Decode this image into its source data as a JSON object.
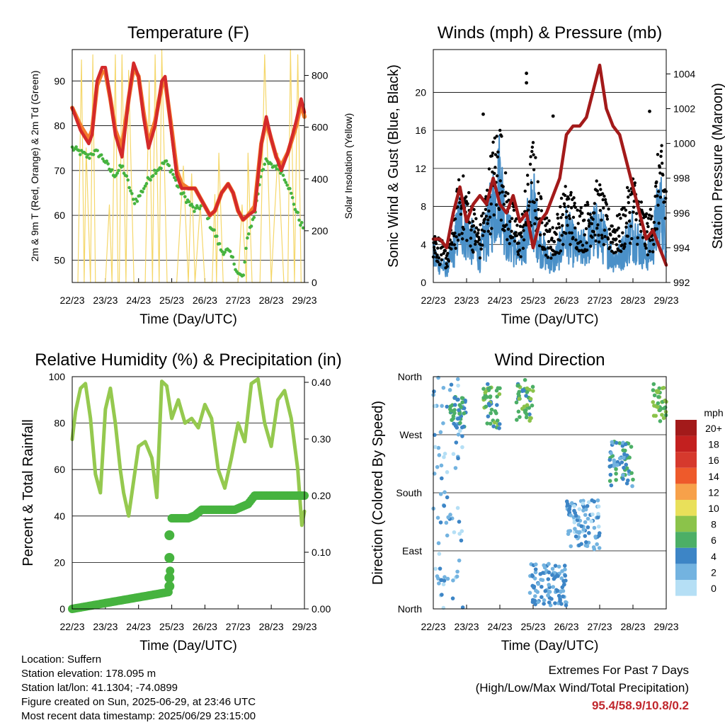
{
  "colors": {
    "temp2m": "#d42a2a",
    "temp9m": "#f47c2c",
    "dewpoint": "#46b33f",
    "solar": "#f5d76a",
    "wind": "#4a90c8",
    "gust": "#000000",
    "pressure": "#a31a1a",
    "rh": "#95c94f",
    "precip": "#46b33f",
    "extremes": "#c0272d"
  },
  "chart_data": [
    {
      "id": "temperature",
      "type": "line",
      "title": "Temperature (F)",
      "xlabel": "Time (Day/UTC)",
      "ylabel_left": "2m & 9m T (Red, Orange) & 2m Td (Green)",
      "ylabel_right": "Solar Insolation (Yellow)",
      "x_ticks": [
        "22/23",
        "23/23",
        "24/23",
        "25/23",
        "26/23",
        "27/23",
        "28/23",
        "29/23"
      ],
      "ylim_left": [
        45,
        97
      ],
      "yticks_left": [
        50,
        60,
        70,
        80,
        90
      ],
      "ylim_right": [
        0,
        900
      ],
      "yticks_right": [
        0,
        200,
        400,
        600,
        800
      ],
      "grid": true,
      "x_days": [
        0,
        0.25,
        0.5,
        0.6,
        0.75,
        0.9,
        1,
        1.15,
        1.3,
        1.5,
        1.7,
        1.85,
        2,
        2.15,
        2.3,
        2.5,
        2.7,
        2.8,
        3,
        3.15,
        3.3,
        3.5,
        3.7,
        3.85,
        4,
        4.15,
        4.3,
        4.5,
        4.7,
        4.85,
        5,
        5.15,
        5.3,
        5.5,
        5.7,
        5.85,
        6,
        6.15,
        6.3,
        6.5,
        6.75,
        6.9,
        7
      ],
      "series": [
        {
          "name": "2m T",
          "values": [
            84,
            79,
            76,
            78,
            90,
            93,
            93,
            86,
            78,
            73,
            86,
            94,
            91,
            82,
            75,
            80,
            90,
            91,
            78,
            69,
            66,
            66,
            66,
            64,
            62,
            60,
            61,
            65,
            67,
            65,
            61,
            59,
            60,
            61,
            76,
            82,
            77,
            73,
            70,
            74,
            81,
            86,
            83
          ]
        },
        {
          "name": "9m T",
          "values": [
            84,
            80,
            77,
            79,
            89,
            92,
            92,
            86,
            79,
            75,
            86,
            93,
            91,
            83,
            76,
            81,
            89,
            90,
            79,
            70,
            67,
            66,
            66,
            64,
            62,
            60,
            61,
            65,
            67,
            65,
            61,
            59,
            60,
            62,
            76,
            81,
            77,
            73,
            71,
            74,
            80,
            85,
            82
          ]
        },
        {
          "name": "2m Td",
          "values": [
            75,
            74,
            73,
            74,
            74,
            73,
            72,
            70,
            69,
            71,
            67,
            63,
            64,
            66,
            68,
            70,
            71,
            72,
            70,
            67,
            65,
            63,
            61,
            62,
            62,
            58,
            56,
            52,
            52,
            50,
            47,
            46,
            56,
            60,
            70,
            72,
            71,
            71,
            70,
            67,
            61,
            58,
            57
          ]
        }
      ],
      "solar_days": [
        0.17,
        0.28,
        0.36,
        0.42,
        0.55,
        0.62,
        0.7,
        0.86,
        1.0,
        1.12,
        1.2,
        1.3,
        1.38,
        1.42,
        1.5,
        1.62,
        1.7,
        1.86,
        2.0,
        2.2,
        2.32,
        2.42,
        2.5,
        2.62,
        2.7,
        2.86,
        3.0,
        3.15,
        3.35,
        3.5,
        3.6,
        3.7,
        3.86,
        4.0,
        4.22,
        4.3,
        4.35,
        4.42,
        4.55,
        4.7,
        4.86,
        5.0,
        5.12,
        5.25,
        5.3,
        5.42,
        5.52,
        5.66,
        5.8,
        6.0,
        6.1,
        6.2,
        6.38,
        6.5,
        6.58,
        6.7,
        6.8,
        6.9,
        7.0
      ],
      "solar_values": [
        0,
        860,
        0,
        520,
        0,
        880,
        0,
        0,
        0,
        300,
        0,
        880,
        0,
        0,
        880,
        0,
        820,
        0,
        0,
        0,
        780,
        0,
        880,
        0,
        900,
        0,
        0,
        0,
        450,
        0,
        420,
        0,
        300,
        0,
        0,
        340,
        0,
        500,
        0,
        0,
        0,
        0,
        300,
        0,
        500,
        0,
        0,
        0,
        880,
        0,
        260,
        500,
        0,
        0,
        900,
        0,
        880,
        0,
        0
      ]
    },
    {
      "id": "winds",
      "type": "line",
      "title": "Winds (mph) & Pressure (mb)",
      "xlabel": "Time (Day/UTC)",
      "ylabel_left": "Sonic Wind & Gust (Blue, Black)",
      "ylabel_right": "Station Pressure (Maroon)",
      "x_ticks": [
        "22/23",
        "23/23",
        "24/23",
        "25/23",
        "26/23",
        "27/23",
        "28/23",
        "29/23"
      ],
      "ylim_left": [
        0,
        24.5
      ],
      "yticks_left": [
        0,
        4,
        8,
        12,
        16,
        20
      ],
      "ylim_right": [
        992,
        1005.4
      ],
      "yticks_right": [
        992,
        994,
        996,
        998,
        1000,
        1002,
        1004
      ],
      "grid": true,
      "wind_days": [
        0,
        0.2,
        0.4,
        0.6,
        0.8,
        1,
        1.2,
        1.4,
        1.6,
        1.8,
        2,
        2.2,
        2.4,
        2.6,
        2.8,
        3,
        3.2,
        3.4,
        3.6,
        3.8,
        4,
        4.2,
        4.4,
        4.6,
        4.8,
        5,
        5.2,
        5.4,
        5.6,
        5.8,
        6,
        6.2,
        6.4,
        6.6,
        6.8,
        7
      ],
      "series": [
        {
          "name": "Sonic Wind",
          "values": [
            2,
            1.5,
            1,
            2.5,
            5,
            4,
            3,
            2,
            4,
            6,
            8,
            4,
            3,
            2,
            4,
            6,
            3,
            2,
            1.5,
            2.5,
            4,
            3,
            2.5,
            3,
            4,
            4,
            3,
            2,
            2,
            3,
            4,
            3,
            2,
            3,
            6,
            4
          ]
        },
        {
          "name": "Gust",
          "values": [
            5,
            4,
            3,
            6,
            10,
            9,
            7,
            5,
            9,
            13,
            15,
            9,
            7,
            5,
            9,
            13,
            8,
            6,
            5,
            7,
            9,
            8,
            7,
            7,
            9,
            9,
            7,
            6,
            6,
            8,
            10,
            8,
            6,
            7,
            13,
            10
          ]
        },
        {
          "name": "Station Pressure",
          "values": [
            994.5,
            994.5,
            994,
            996,
            997.5,
            995.5,
            996.5,
            997,
            996.5,
            998,
            996.5,
            996,
            997,
            995.5,
            996,
            994,
            995.5,
            996,
            997,
            998,
            1000.5,
            1001,
            1001,
            1001.5,
            1003,
            1004.5,
            1002,
            1001,
            1000.5,
            999,
            997.5,
            996,
            994.5,
            995,
            994,
            993
          ]
        }
      ],
      "gust_outliers": [
        [
          2.8,
          22
        ],
        [
          2.8,
          21
        ],
        [
          1.5,
          17.7
        ],
        [
          3.6,
          17.5
        ],
        [
          6.5,
          18
        ]
      ]
    },
    {
      "id": "humidity",
      "type": "line",
      "title": "Relative Humidity (%) & Precipitation (in)",
      "xlabel": "Time (Day/UTC)",
      "ylabel_left": "Percent & Total Rainfall",
      "ylim_left": [
        0,
        100
      ],
      "yticks_left": [
        0,
        20,
        40,
        60,
        80,
        100
      ],
      "ylim_right": [
        0,
        0.41
      ],
      "yticks_right": [
        "0.00",
        "0.10",
        "0.20",
        "0.30",
        "0.40"
      ],
      "x_ticks": [
        "22/23",
        "23/23",
        "24/23",
        "25/23",
        "26/23",
        "27/23",
        "28/23",
        "29/23"
      ],
      "grid": true,
      "rh_days": [
        0,
        0.1,
        0.25,
        0.4,
        0.55,
        0.7,
        0.85,
        1.0,
        1.15,
        1.3,
        1.45,
        1.55,
        1.7,
        1.85,
        2.0,
        2.2,
        2.4,
        2.55,
        2.7,
        2.85,
        3.0,
        3.2,
        3.4,
        3.6,
        3.8,
        4.0,
        4.2,
        4.4,
        4.6,
        4.8,
        5.0,
        5.2,
        5.4,
        5.6,
        5.8,
        6.0,
        6.2,
        6.4,
        6.6,
        6.8,
        6.92,
        7.0
      ],
      "rh_values": [
        73,
        85,
        95,
        97,
        82,
        58,
        50,
        86,
        95,
        80,
        60,
        50,
        40,
        55,
        70,
        72,
        65,
        48,
        98,
        96,
        82,
        90,
        80,
        82,
        78,
        88,
        82,
        60,
        52,
        65,
        80,
        72,
        97,
        99,
        80,
        70,
        90,
        94,
        82,
        60,
        36,
        42
      ],
      "precip_days": [
        0,
        2.93,
        3.0,
        3.1,
        3.3,
        3.5,
        3.7,
        3.9,
        4.1,
        4.3,
        4.5,
        4.7,
        4.9,
        5.1,
        5.3,
        5.5,
        5.7,
        5.9,
        6.1,
        6.3,
        6.5,
        6.7,
        6.9,
        7.0
      ],
      "precip_values": [
        0,
        0.03,
        0.16,
        0.16,
        0.16,
        0.16,
        0.165,
        0.175,
        0.175,
        0.175,
        0.175,
        0.175,
        0.175,
        0.18,
        0.185,
        0.2,
        0.2,
        0.2,
        0.2,
        0.2,
        0.2,
        0.2,
        0.2,
        0.2
      ]
    },
    {
      "id": "direction",
      "type": "scatter",
      "title": "Wind Direction",
      "xlabel": "Time (Day/UTC)",
      "ylabel_left": "Direction (Colored By Speed)",
      "ytick_labels": [
        "North",
        "East",
        "South",
        "West",
        "North"
      ],
      "x_ticks": [
        "22/23",
        "23/23",
        "24/23",
        "25/23",
        "26/23",
        "27/23",
        "28/23",
        "29/23"
      ],
      "grid": true,
      "legend": {
        "title": "mph",
        "labels": [
          "20+",
          "18",
          "16",
          "14",
          "12",
          "10",
          "8",
          "6",
          "4",
          "2",
          "0"
        ],
        "colors": [
          "#a31a1a",
          "#c3201f",
          "#d6392d",
          "#ee5a2b",
          "#f7a14a",
          "#e9e05a",
          "#8bc34a",
          "#4caf66",
          "#3d85c6",
          "#73b3e0",
          "#b5dff5"
        ]
      },
      "clusters": [
        {
          "day_from": 0,
          "day_to": 0.9,
          "dir_from": 0,
          "dir_to": 360,
          "speed": 2
        },
        {
          "day_from": 0.5,
          "day_to": 1.0,
          "dir_from": 280,
          "dir_to": 330,
          "speed": 5
        },
        {
          "day_from": 1.5,
          "day_to": 2.0,
          "dir_from": 280,
          "dir_to": 350,
          "speed": 6
        },
        {
          "day_from": 2.5,
          "day_to": 3.0,
          "dir_from": 290,
          "dir_to": 355,
          "speed": 6
        },
        {
          "day_from": 2.9,
          "day_to": 4.0,
          "dir_from": 5,
          "dir_to": 70,
          "speed": 3
        },
        {
          "day_from": 4.0,
          "day_to": 5.0,
          "dir_from": 90,
          "dir_to": 170,
          "speed": 2
        },
        {
          "day_from": 5.3,
          "day_to": 6.0,
          "dir_from": 190,
          "dir_to": 260,
          "speed": 4
        },
        {
          "day_from": 6.6,
          "day_to": 7.0,
          "dir_from": 290,
          "dir_to": 350,
          "speed": 7
        }
      ]
    }
  ],
  "info": {
    "location": "Location: Suffern",
    "elevation": "Station elevation: 178.095 m",
    "latlon": "Station lat/lon: 41.1304; -74.0899",
    "created": "Figure created on Sun, 2025-06-29, at 23:46 UTC",
    "timestamp": "Most recent data timestamp: 2025/06/29 23:15:00"
  },
  "extremes": {
    "title": "Extremes For Past 7 Days",
    "subtitle": "(High/Low/Max Wind/Total Precipitation)",
    "values": "95.4/58.9/10.8/0.2"
  }
}
